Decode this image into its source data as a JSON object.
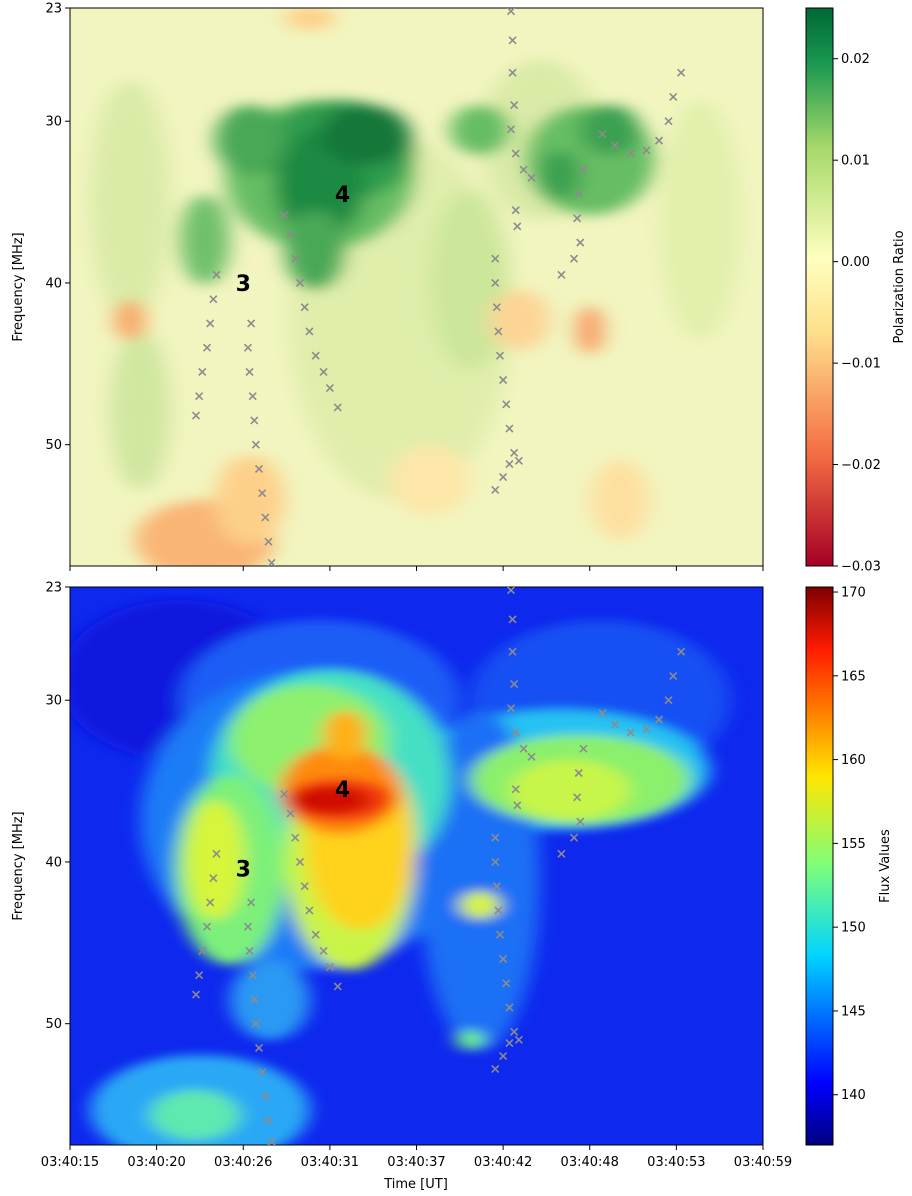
{
  "chart_data": [
    {
      "type": "heatmap",
      "panel": "top",
      "ylabel": "Frequency [MHz]",
      "xlabel": "",
      "y_ticks": [
        "23",
        "30",
        "40",
        "50"
      ],
      "y_tick_values": [
        23,
        30,
        40,
        50
      ],
      "ylim": [
        57.5,
        23
      ],
      "xlim": [
        "03:40:15",
        "03:40:59"
      ],
      "colorbar": {
        "label": "Polarization Ratio",
        "colormap": "RdYlGn",
        "range": [
          -0.03,
          0.025
        ],
        "ticks": [
          "0.02",
          "0.01",
          "0.00",
          "−0.01",
          "−0.02",
          "−0.03"
        ],
        "tick_values": [
          0.02,
          0.01,
          0.0,
          -0.01,
          -0.02,
          -0.03
        ]
      },
      "annotations": [
        {
          "text": "3",
          "time_s": 26.0,
          "freq": 40.0
        },
        {
          "text": "4",
          "time_s": 32.3,
          "freq": 34.5
        }
      ]
    },
    {
      "type": "heatmap",
      "panel": "bottom",
      "ylabel": "Frequency [MHz]",
      "xlabel": "Time [UT]",
      "y_ticks": [
        "23",
        "30",
        "40",
        "50"
      ],
      "y_tick_values": [
        23,
        30,
        40,
        50
      ],
      "ylim": [
        57.5,
        23
      ],
      "x_ticks": [
        "03:40:15",
        "03:40:20",
        "03:40:26",
        "03:40:31",
        "03:40:37",
        "03:40:42",
        "03:40:48",
        "03:40:53",
        "03:40:59"
      ],
      "x_tick_values_s": [
        15,
        20.5,
        26,
        31.5,
        37,
        42.5,
        48,
        53.5,
        59
      ],
      "colorbar": {
        "label": "Flux Values",
        "colormap": "jet",
        "range": [
          137,
          170.3
        ],
        "ticks": [
          "170",
          "165",
          "160",
          "155",
          "150",
          "145",
          "140"
        ],
        "tick_values": [
          170,
          165,
          160,
          155,
          150,
          145,
          140
        ]
      },
      "annotations": [
        {
          "text": "3",
          "time_s": 26.0,
          "freq": 40.4
        },
        {
          "text": "4",
          "time_s": 32.3,
          "freq": 35.5
        }
      ]
    }
  ],
  "burst_tracks": {
    "marker": "x",
    "color": "#8c8c8c",
    "tracks": [
      {
        "name": "3",
        "points": [
          [
            24.3,
            39.5
          ],
          [
            24.1,
            41.0
          ],
          [
            23.9,
            42.5
          ],
          [
            23.7,
            44.0
          ],
          [
            23.4,
            45.5
          ],
          [
            23.2,
            47.0
          ],
          [
            23.0,
            48.2
          ]
        ]
      },
      {
        "name": "3",
        "points": [
          [
            26.5,
            42.5
          ],
          [
            26.3,
            44.0
          ],
          [
            26.4,
            45.5
          ],
          [
            26.6,
            47.0
          ],
          [
            26.7,
            48.5
          ],
          [
            26.8,
            50.0
          ],
          [
            27.0,
            51.5
          ],
          [
            27.2,
            53.0
          ],
          [
            27.4,
            54.5
          ],
          [
            27.6,
            56.0
          ],
          [
            27.8,
            57.3
          ]
        ]
      },
      {
        "name": "4",
        "points": [
          [
            28.6,
            35.8
          ],
          [
            29.0,
            37.0
          ],
          [
            29.3,
            38.5
          ],
          [
            29.6,
            40.0
          ],
          [
            29.9,
            41.5
          ],
          [
            30.2,
            43.0
          ],
          [
            30.6,
            44.5
          ],
          [
            31.1,
            45.5
          ],
          [
            31.5,
            46.5
          ],
          [
            32.0,
            47.7
          ]
        ]
      },
      {
        "name": "",
        "points": [
          [
            43.0,
            23.2
          ],
          [
            43.1,
            25.0
          ],
          [
            43.1,
            27.0
          ],
          [
            43.2,
            29.0
          ],
          [
            43.0,
            30.5
          ],
          [
            43.3,
            32.0
          ],
          [
            43.8,
            33.0
          ],
          [
            44.3,
            33.5
          ],
          [
            43.3,
            35.5
          ],
          [
            43.4,
            36.5
          ]
        ]
      },
      {
        "name": "",
        "points": [
          [
            42.0,
            38.5
          ],
          [
            42.0,
            40.0
          ],
          [
            42.1,
            41.5
          ],
          [
            42.2,
            43.0
          ],
          [
            42.3,
            44.5
          ],
          [
            42.5,
            46.0
          ],
          [
            42.7,
            47.5
          ],
          [
            42.9,
            49.0
          ],
          [
            43.2,
            50.5
          ],
          [
            42.9,
            51.2
          ],
          [
            42.5,
            52.0
          ],
          [
            42.0,
            52.8
          ],
          [
            43.5,
            51.0
          ]
        ]
      },
      {
        "name": "",
        "points": [
          [
            47.6,
            33.0
          ],
          [
            47.3,
            34.5
          ],
          [
            47.2,
            36.0
          ],
          [
            47.4,
            37.5
          ],
          [
            47.0,
            38.5
          ],
          [
            46.2,
            39.5
          ]
        ]
      },
      {
        "name": "",
        "points": [
          [
            48.8,
            30.8
          ],
          [
            49.6,
            31.5
          ],
          [
            50.6,
            32.0
          ],
          [
            51.6,
            31.8
          ],
          [
            52.4,
            31.2
          ],
          [
            53.0,
            30.0
          ],
          [
            53.3,
            28.5
          ],
          [
            53.8,
            27.0
          ]
        ]
      }
    ]
  }
}
